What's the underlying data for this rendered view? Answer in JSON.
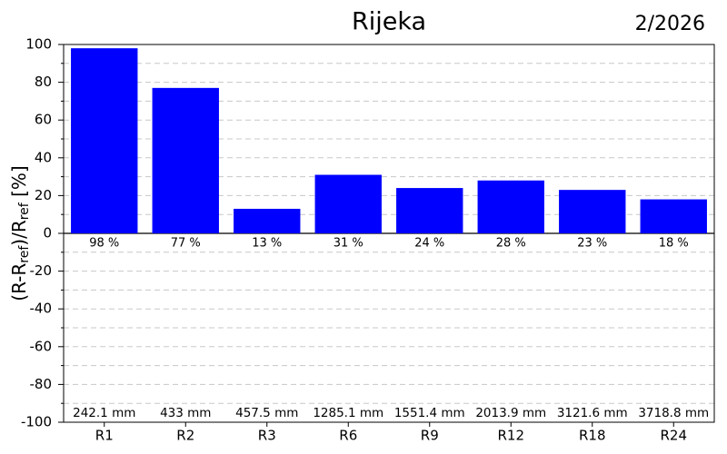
{
  "chart_data": {
    "type": "bar",
    "title": "Rijeka",
    "date": "2/2026",
    "ylabel": [
      {
        "text": "(R-R"
      },
      {
        "text": "ref",
        "sub": true
      },
      {
        "text": ")/R"
      },
      {
        "text": "ref",
        "sub": true
      },
      {
        "text": " [%]"
      }
    ],
    "categories": [
      "R1",
      "R2",
      "R3",
      "R6",
      "R9",
      "R12",
      "R18",
      "R24"
    ],
    "values": [
      98,
      77,
      13,
      31,
      24,
      28,
      23,
      18
    ],
    "value_labels": [
      "98 %",
      "77 %",
      "13 %",
      "31 %",
      "24 %",
      "28 %",
      "23 %",
      "18 %"
    ],
    "annotations": [
      "242.1 mm",
      "433 mm",
      "457.5 mm",
      "1285.1 mm",
      "1551.4 mm",
      "2013.9 mm",
      "3121.6 mm",
      "3718.8 mm"
    ],
    "color": "#0000ff",
    "ylim": [
      -100,
      100
    ],
    "yticks": [
      -100,
      -80,
      -60,
      -40,
      -20,
      0,
      20,
      40,
      60,
      80,
      100
    ],
    "minor_yticks": [
      -90,
      -70,
      -50,
      -30,
      -10,
      10,
      30,
      50,
      70,
      90
    ],
    "grid": true
  }
}
